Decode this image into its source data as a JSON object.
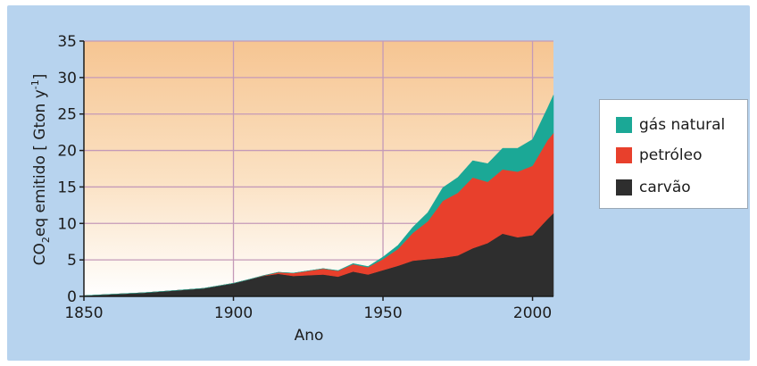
{
  "chart_data": {
    "type": "area",
    "stacked": true,
    "xlabel": "Ano",
    "ylabel_main": "CO",
    "ylabel_sub": "2",
    "ylabel_rest": "eq emitido [ Gton y",
    "ylabel_sup": "-1",
    "ylabel_end": "]",
    "xlim": [
      1850,
      2007
    ],
    "ylim": [
      0,
      35
    ],
    "x_ticks": [
      1850,
      1900,
      1950,
      2000
    ],
    "y_ticks": [
      0,
      5,
      10,
      15,
      20,
      25,
      30,
      35
    ],
    "grid": true,
    "legend_position": "right",
    "series": [
      {
        "name": "carvão",
        "color": "#2e2e2e",
        "x": [
          1850,
          1860,
          1870,
          1880,
          1890,
          1900,
          1905,
          1910,
          1915,
          1920,
          1925,
          1930,
          1935,
          1940,
          1945,
          1950,
          1955,
          1960,
          1965,
          1970,
          1975,
          1980,
          1985,
          1990,
          1995,
          2000,
          2005,
          2007
        ],
        "y": [
          0.1,
          0.3,
          0.5,
          0.8,
          1.1,
          1.8,
          2.3,
          2.8,
          3.1,
          2.8,
          2.9,
          3.0,
          2.7,
          3.4,
          3.0,
          3.6,
          4.2,
          4.9,
          5.1,
          5.3,
          5.6,
          6.6,
          7.3,
          8.6,
          8.1,
          8.4,
          10.6,
          11.4
        ]
      },
      {
        "name": "petróleo",
        "color": "#e8402c",
        "x": [
          1850,
          1860,
          1870,
          1880,
          1890,
          1900,
          1905,
          1910,
          1915,
          1920,
          1925,
          1930,
          1935,
          1940,
          1945,
          1950,
          1955,
          1960,
          1965,
          1970,
          1975,
          1980,
          1985,
          1990,
          1995,
          2000,
          2005,
          2007
        ],
        "y": [
          0,
          0,
          0,
          0,
          0,
          0,
          0,
          0.05,
          0.2,
          0.4,
          0.6,
          0.8,
          0.8,
          1.0,
          1.0,
          1.5,
          2.3,
          3.8,
          5.2,
          7.8,
          8.6,
          9.7,
          8.4,
          8.8,
          9.0,
          9.5,
          10.8,
          11.0
        ]
      },
      {
        "name": "gás natural",
        "color": "#1ba896",
        "x": [
          1850,
          1860,
          1870,
          1880,
          1890,
          1900,
          1905,
          1910,
          1915,
          1920,
          1925,
          1930,
          1935,
          1940,
          1945,
          1950,
          1955,
          1960,
          1965,
          1970,
          1975,
          1980,
          1985,
          1990,
          1995,
          2000,
          2005,
          2007
        ],
        "y": [
          0,
          0,
          0,
          0,
          0,
          0,
          0,
          0,
          0,
          0,
          0,
          0,
          0.05,
          0.1,
          0.1,
          0.3,
          0.5,
          0.8,
          1.2,
          1.8,
          2.1,
          2.3,
          2.5,
          2.9,
          3.2,
          3.6,
          4.4,
          5.2
        ]
      }
    ],
    "legend_order": [
      "gás natural",
      "petróleo",
      "carvão"
    ]
  }
}
